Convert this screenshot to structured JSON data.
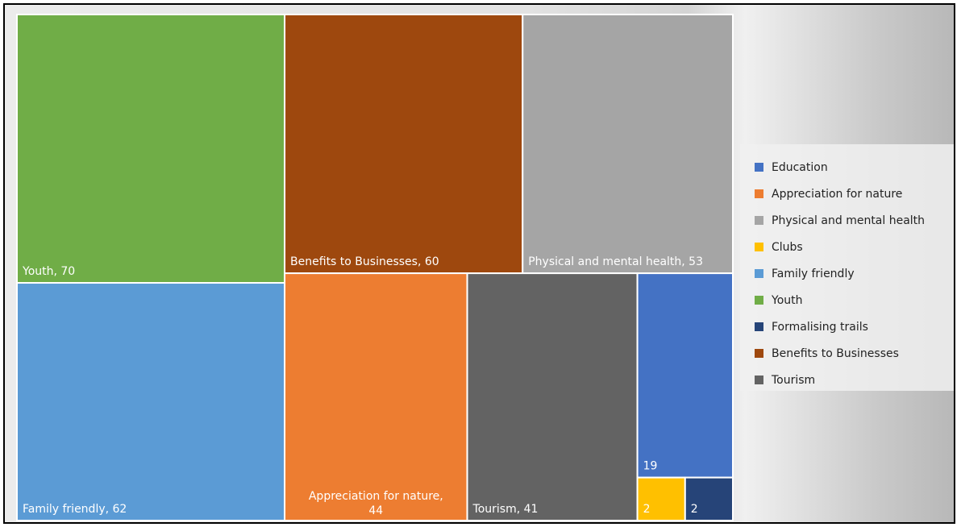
{
  "chart_data": {
    "type": "treemap",
    "items": [
      {
        "label": "Youth",
        "value": 70,
        "color": "#70ad47",
        "tile_text": "Youth, 70"
      },
      {
        "label": "Family friendly",
        "value": 62,
        "color": "#5b9bd5",
        "tile_text": "Family friendly, 62"
      },
      {
        "label": "Benefits to Businesses",
        "value": 60,
        "color": "#9e480e",
        "tile_text": "Benefits to Businesses, 60"
      },
      {
        "label": "Physical and mental health",
        "value": 53,
        "color": "#a5a5a5",
        "tile_text": "Physical and mental health, 53"
      },
      {
        "label": "Appreciation for nature",
        "value": 44,
        "color": "#ed7d31",
        "tile_text": "Appreciation for nature,\n44"
      },
      {
        "label": "Tourism",
        "value": 41,
        "color": "#636363",
        "tile_text": "Tourism, 41"
      },
      {
        "label": "Education",
        "value": 19,
        "color": "#4472c4",
        "tile_text": "19"
      },
      {
        "label": "Clubs",
        "value": 2,
        "color": "#ffc000",
        "tile_text": "2"
      },
      {
        "label": "Formalising trails",
        "value": 2,
        "color": "#264478",
        "tile_text": "2"
      }
    ],
    "legend": [
      {
        "label": "Education",
        "color": "#4472c4"
      },
      {
        "label": "Appreciation for nature",
        "color": "#ed7d31"
      },
      {
        "label": "Physical and mental health",
        "color": "#a5a5a5"
      },
      {
        "label": "Clubs",
        "color": "#ffc000"
      },
      {
        "label": "Family friendly",
        "color": "#5b9bd5"
      },
      {
        "label": "Youth",
        "color": "#70ad47"
      },
      {
        "label": "Formalising trails",
        "color": "#264478"
      },
      {
        "label": "Benefits to Businesses",
        "color": "#9e480e"
      },
      {
        "label": "Tourism",
        "color": "#636363"
      }
    ],
    "legend_position": "right"
  }
}
